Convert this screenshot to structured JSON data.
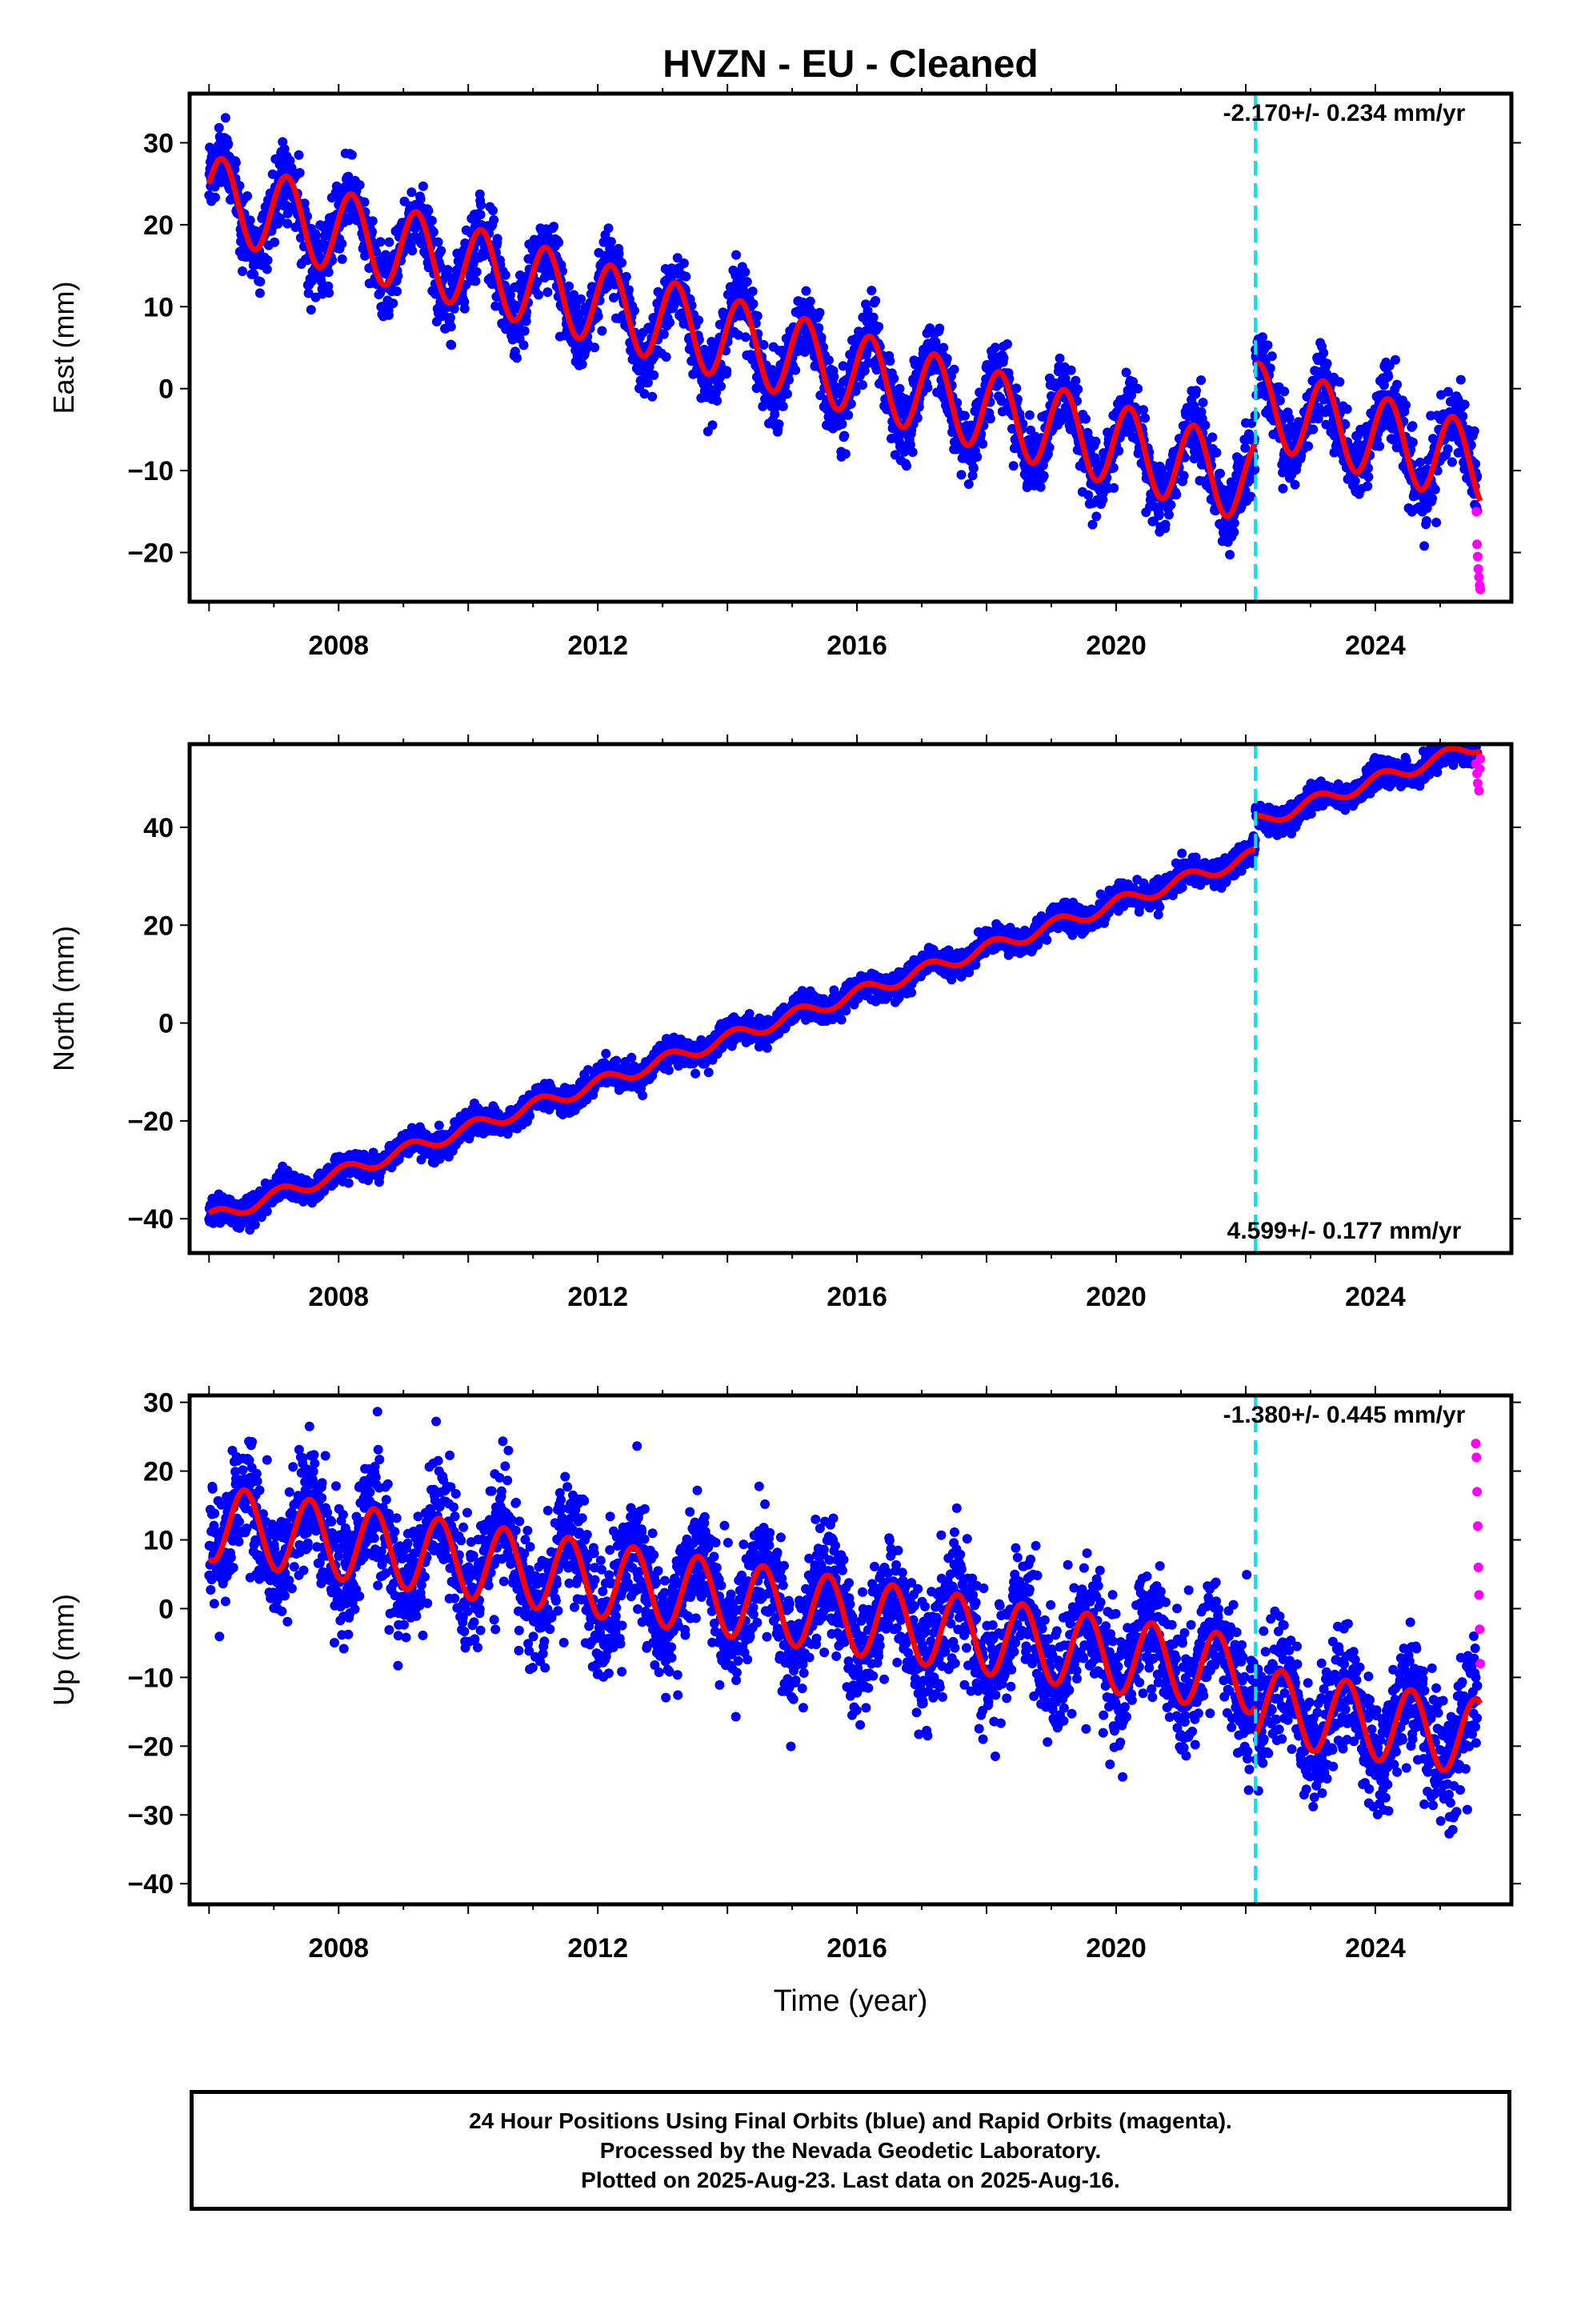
{
  "title": "HVZN  - EU - Cleaned",
  "x_axis_label": "Time (year)",
  "footer_lines": [
    "24 Hour Positions Using Final Orbits (blue) and Rapid Orbits (magenta).",
    "Processed by the Nevada Geodetic Laboratory.",
    "Plotted on 2025-Aug-23. Last data on 2025-Aug-16."
  ],
  "colors": {
    "final_orbits": "#0000ff",
    "rapid_orbits": "#ff00ff",
    "model": "#ff0000",
    "offset_line": "#00e5ee"
  },
  "chart_data": [
    {
      "type": "scatter",
      "panel": "east",
      "ylabel": "East (mm)",
      "rate_label": "-2.170+/- 0.234 mm/yr",
      "xlim": [
        2005.7,
        2026.1
      ],
      "ylim": [
        -26,
        36
      ],
      "xticks": [
        2008,
        2012,
        2016,
        2020,
        2024
      ],
      "yticks": [
        -20,
        -10,
        0,
        10,
        20,
        30
      ],
      "offset_epoch": 2022.15,
      "data_start": 2006.0,
      "data_end": 2025.62,
      "model": {
        "segments": [
          {
            "t0": 2006.0,
            "t1": 2022.15,
            "ref_t": 2006.0,
            "intercept": 23.5,
            "rate": -2.17
          },
          {
            "t0": 2022.15,
            "t1": 2025.62,
            "ref_t": 2022.15,
            "intercept": -1.8,
            "rate": -2.17
          }
        ],
        "seasonal_amplitude": 5.0,
        "seasonal_phase_peak": 0.2
      },
      "noise_sd": 2.2,
      "rapid_points": [
        [
          2025.56,
          -15
        ],
        [
          2025.57,
          -19
        ],
        [
          2025.58,
          -20.5
        ],
        [
          2025.59,
          -22
        ],
        [
          2025.6,
          -23
        ],
        [
          2025.61,
          -24
        ],
        [
          2025.62,
          -24.5
        ]
      ],
      "legend": "none",
      "grid": false
    },
    {
      "type": "scatter",
      "panel": "north",
      "ylabel": "North (mm)",
      "rate_label": "4.599+/- 0.177 mm/yr",
      "xlim": [
        2005.7,
        2026.1
      ],
      "ylim": [
        -47,
        57
      ],
      "xticks": [
        2008,
        2012,
        2016,
        2020,
        2024
      ],
      "yticks": [
        -40,
        -20,
        0,
        20,
        40
      ],
      "offset_epoch": 2022.15,
      "data_start": 2006.0,
      "data_end": 2025.62,
      "model": {
        "segments": [
          {
            "t0": 2006.0,
            "t1": 2022.15,
            "ref_t": 2006.0,
            "intercept": -40.0,
            "rate": 4.599
          },
          {
            "t0": 2022.15,
            "t1": 2025.62,
            "ref_t": 2022.15,
            "intercept": 41.0,
            "rate": 4.599
          }
        ],
        "seasonal_amplitude": 1.4,
        "seasonal_phase_peak": 0.1
      },
      "noise_sd": 1.3,
      "rapid_points": [
        [
          2025.55,
          53
        ],
        [
          2025.57,
          51
        ],
        [
          2025.58,
          49
        ],
        [
          2025.6,
          47.5
        ],
        [
          2025.61,
          52
        ],
        [
          2025.62,
          54
        ]
      ],
      "legend": "none",
      "grid": false
    },
    {
      "type": "scatter",
      "panel": "up",
      "ylabel": "Up (mm)",
      "rate_label": "-1.380+/- 0.445 mm/yr",
      "xlim": [
        2005.7,
        2026.1
      ],
      "ylim": [
        -43,
        31
      ],
      "xticks": [
        2008,
        2012,
        2016,
        2020,
        2024
      ],
      "yticks": [
        -40,
        -30,
        -20,
        -10,
        0,
        10,
        20,
        30
      ],
      "offset_epoch": 2022.15,
      "data_start": 2006.0,
      "data_end": 2025.62,
      "model": {
        "segments": [
          {
            "t0": 2006.0,
            "t1": 2022.15,
            "ref_t": 2006.0,
            "intercept": 12.5,
            "rate": -1.38
          },
          {
            "t0": 2022.15,
            "t1": 2025.62,
            "ref_t": 2022.15,
            "intercept": -14.0,
            "rate": -1.38
          }
        ],
        "seasonal_amplitude": 5.5,
        "seasonal_phase_peak": 0.55
      },
      "noise_sd": 4.5,
      "rapid_points": [
        [
          2025.55,
          24
        ],
        [
          2025.56,
          22
        ],
        [
          2025.57,
          17
        ],
        [
          2025.58,
          12
        ],
        [
          2025.59,
          6
        ],
        [
          2025.6,
          2
        ],
        [
          2025.61,
          -3
        ],
        [
          2025.62,
          -8
        ]
      ],
      "legend": "none",
      "grid": false
    }
  ]
}
